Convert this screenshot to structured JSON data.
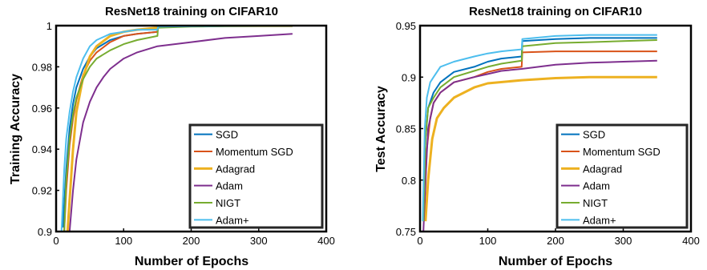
{
  "chart_data": [
    {
      "type": "line",
      "title": "ResNet18 training on CIFAR10",
      "xlabel": "Number of Epochs",
      "ylabel": "Training Accuracy",
      "xlim": [
        0,
        400
      ],
      "ylim": [
        0.9,
        1.0
      ],
      "xticks": [
        0,
        100,
        200,
        300,
        400
      ],
      "xtick_labels": [
        "0",
        "100",
        "200",
        "300",
        "400"
      ],
      "yticks": [
        0.9,
        0.92,
        0.94,
        0.96,
        0.98,
        1.0
      ],
      "ytick_labels": [
        "0.9",
        "0.92",
        "0.94",
        "0.96",
        "0.98",
        "1"
      ],
      "legend_position": "bottom-right",
      "series": [
        {
          "name": "SGD",
          "color": "#0072BD",
          "x": [
            10,
            15,
            20,
            25,
            30,
            40,
            50,
            60,
            80,
            100,
            120,
            150,
            151,
            200,
            250,
            300,
            350
          ],
          "y": [
            0.902,
            0.93,
            0.95,
            0.962,
            0.97,
            0.979,
            0.985,
            0.989,
            0.993,
            0.995,
            0.996,
            0.997,
            0.9995,
            0.9997,
            0.9998,
            0.9999,
            0.9999
          ]
        },
        {
          "name": "Momentum SGD",
          "color": "#D95319",
          "x": [
            12,
            15,
            20,
            25,
            30,
            40,
            50,
            60,
            80,
            100,
            120,
            150,
            151,
            200,
            250,
            300,
            350
          ],
          "y": [
            0.9,
            0.92,
            0.942,
            0.955,
            0.964,
            0.976,
            0.983,
            0.987,
            0.992,
            0.995,
            0.996,
            0.997,
            0.9995,
            0.9997,
            0.9998,
            0.9999,
            0.9999
          ]
        },
        {
          "name": "Adagrad",
          "color": "#EDB120",
          "x": [
            17,
            20,
            25,
            30,
            40,
            50,
            60,
            80,
            100,
            120,
            150,
            151,
            200,
            250,
            300,
            350
          ],
          "y": [
            0.9,
            0.915,
            0.94,
            0.958,
            0.975,
            0.985,
            0.99,
            0.995,
            0.997,
            0.998,
            0.999,
            0.9997,
            0.9998,
            0.9999,
            0.9999,
            0.9999
          ]
        },
        {
          "name": "Adam",
          "color": "#7E2F8E",
          "x": [
            20,
            25,
            30,
            40,
            50,
            60,
            70,
            80,
            100,
            120,
            150,
            200,
            250,
            300,
            350
          ],
          "y": [
            0.9,
            0.92,
            0.935,
            0.953,
            0.963,
            0.97,
            0.975,
            0.979,
            0.984,
            0.987,
            0.99,
            0.992,
            0.994,
            0.995,
            0.996
          ]
        },
        {
          "name": "NIGT",
          "color": "#77AC30",
          "x": [
            12,
            15,
            20,
            25,
            30,
            40,
            50,
            60,
            80,
            100,
            120,
            150,
            151,
            200,
            250,
            300,
            350
          ],
          "y": [
            0.9,
            0.925,
            0.945,
            0.957,
            0.965,
            0.974,
            0.98,
            0.984,
            0.988,
            0.991,
            0.993,
            0.995,
            0.999,
            0.9995,
            0.9997,
            0.9998,
            0.9999
          ]
        },
        {
          "name": "Adam+",
          "color": "#4DBEEE",
          "x": [
            8,
            12,
            15,
            20,
            25,
            30,
            40,
            50,
            60,
            80,
            100,
            120,
            150,
            151,
            200,
            250,
            300,
            350
          ],
          "y": [
            0.9,
            0.93,
            0.945,
            0.958,
            0.968,
            0.975,
            0.984,
            0.99,
            0.993,
            0.996,
            0.997,
            0.998,
            0.998,
            0.9995,
            0.9997,
            0.9998,
            0.9999,
            0.9999
          ]
        }
      ]
    },
    {
      "type": "line",
      "title": "ResNet18 training on CIFAR10",
      "xlabel": "Number of Epochs",
      "ylabel": "Test Accuracy",
      "xlim": [
        0,
        400
      ],
      "ylim": [
        0.75,
        0.95
      ],
      "xticks": [
        0,
        100,
        200,
        300,
        400
      ],
      "xtick_labels": [
        "0",
        "100",
        "200",
        "300",
        "400"
      ],
      "yticks": [
        0.75,
        0.8,
        0.85,
        0.9,
        0.95
      ],
      "ytick_labels": [
        "0.75",
        "0.8",
        "0.85",
        "0.9",
        "0.95"
      ],
      "legend_position": "bottom-right",
      "series": [
        {
          "name": "SGD",
          "color": "#0072BD",
          "x": [
            5,
            8,
            12,
            20,
            30,
            50,
            80,
            100,
            120,
            150,
            151,
            200,
            250,
            300,
            350
          ],
          "y": [
            0.76,
            0.84,
            0.87,
            0.885,
            0.895,
            0.905,
            0.91,
            0.915,
            0.918,
            0.92,
            0.935,
            0.937,
            0.938,
            0.938,
            0.938
          ]
        },
        {
          "name": "Momentum SGD",
          "color": "#D95319",
          "x": [
            6,
            10,
            15,
            20,
            30,
            50,
            80,
            100,
            120,
            150,
            151,
            200,
            250,
            300,
            350
          ],
          "y": [
            0.76,
            0.83,
            0.86,
            0.875,
            0.885,
            0.895,
            0.9,
            0.905,
            0.908,
            0.91,
            0.924,
            0.925,
            0.925,
            0.925,
            0.925
          ]
        },
        {
          "name": "Adagrad",
          "color": "#EDB120",
          "x": [
            8,
            12,
            18,
            25,
            35,
            50,
            80,
            100,
            150,
            200,
            250,
            300,
            350
          ],
          "y": [
            0.76,
            0.8,
            0.84,
            0.86,
            0.87,
            0.88,
            0.89,
            0.894,
            0.897,
            0.899,
            0.9,
            0.9,
            0.9
          ]
        },
        {
          "name": "Adam",
          "color": "#7E2F8E",
          "x": [
            5,
            8,
            12,
            20,
            30,
            50,
            80,
            100,
            120,
            150,
            200,
            250,
            300,
            350
          ],
          "y": [
            0.75,
            0.8,
            0.85,
            0.875,
            0.885,
            0.895,
            0.9,
            0.903,
            0.906,
            0.908,
            0.912,
            0.914,
            0.915,
            0.916
          ]
        },
        {
          "name": "NIGT",
          "color": "#77AC30",
          "x": [
            5,
            8,
            12,
            20,
            30,
            50,
            80,
            100,
            120,
            150,
            151,
            200,
            250,
            300,
            350
          ],
          "y": [
            0.76,
            0.84,
            0.87,
            0.88,
            0.89,
            0.9,
            0.906,
            0.91,
            0.913,
            0.916,
            0.93,
            0.933,
            0.934,
            0.935,
            0.936
          ]
        },
        {
          "name": "Adam+",
          "color": "#4DBEEE",
          "x": [
            4,
            7,
            10,
            15,
            20,
            30,
            50,
            80,
            100,
            120,
            150,
            151,
            200,
            250,
            300,
            350
          ],
          "y": [
            0.76,
            0.85,
            0.88,
            0.895,
            0.9,
            0.91,
            0.915,
            0.92,
            0.923,
            0.925,
            0.927,
            0.937,
            0.94,
            0.941,
            0.941,
            0.941
          ]
        }
      ]
    }
  ]
}
